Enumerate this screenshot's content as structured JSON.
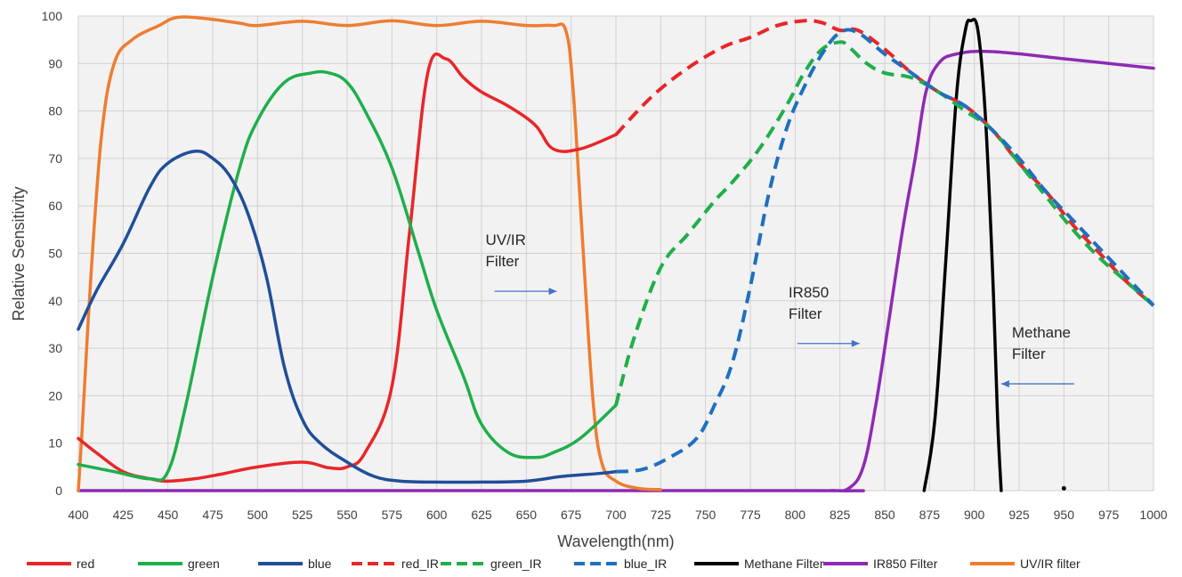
{
  "chart_data": {
    "type": "line",
    "title": "",
    "xlabel": "Wavelength(nm)",
    "ylabel": "Relative Sensitivity",
    "xlim": [
      400,
      1000
    ],
    "ylim": [
      0,
      100
    ],
    "x_ticks": [
      400,
      425,
      450,
      475,
      500,
      525,
      550,
      575,
      600,
      625,
      650,
      675,
      700,
      725,
      750,
      775,
      800,
      825,
      850,
      875,
      900,
      925,
      950,
      975,
      1000
    ],
    "y_ticks": [
      0,
      10,
      20,
      30,
      40,
      50,
      60,
      70,
      80,
      90,
      100
    ],
    "grid": true,
    "legend_position": "bottom",
    "series": [
      {
        "name": "red",
        "color": "#e8262a",
        "dash": "solid",
        "points": [
          [
            400,
            11
          ],
          [
            410,
            8
          ],
          [
            425,
            4
          ],
          [
            440,
            2.5
          ],
          [
            450,
            2
          ],
          [
            465,
            2.5
          ],
          [
            480,
            3.5
          ],
          [
            500,
            5
          ],
          [
            525,
            6
          ],
          [
            540,
            4.8
          ],
          [
            550,
            5
          ],
          [
            560,
            8
          ],
          [
            575,
            22
          ],
          [
            585,
            55
          ],
          [
            595,
            88
          ],
          [
            605,
            91
          ],
          [
            615,
            87
          ],
          [
            625,
            84
          ],
          [
            640,
            81
          ],
          [
            655,
            77
          ],
          [
            665,
            72
          ],
          [
            680,
            72
          ],
          [
            700,
            75
          ]
        ]
      },
      {
        "name": "green",
        "color": "#1fae4b",
        "dash": "solid",
        "points": [
          [
            400,
            5.5
          ],
          [
            420,
            4
          ],
          [
            440,
            2.5
          ],
          [
            450,
            4
          ],
          [
            460,
            18
          ],
          [
            475,
            45
          ],
          [
            490,
            68
          ],
          [
            500,
            78
          ],
          [
            515,
            86
          ],
          [
            530,
            88
          ],
          [
            540,
            88
          ],
          [
            550,
            86
          ],
          [
            560,
            80
          ],
          [
            575,
            68
          ],
          [
            590,
            50
          ],
          [
            600,
            38
          ],
          [
            615,
            24
          ],
          [
            625,
            14
          ],
          [
            640,
            8
          ],
          [
            655,
            7
          ],
          [
            665,
            8
          ],
          [
            680,
            11
          ],
          [
            700,
            18
          ]
        ]
      },
      {
        "name": "blue",
        "color": "#1f4e9a",
        "dash": "solid",
        "points": [
          [
            400,
            34
          ],
          [
            410,
            42
          ],
          [
            425,
            52
          ],
          [
            440,
            64
          ],
          [
            450,
            69
          ],
          [
            465,
            71.5
          ],
          [
            475,
            70
          ],
          [
            485,
            66
          ],
          [
            495,
            58
          ],
          [
            505,
            45
          ],
          [
            515,
            26
          ],
          [
            525,
            15
          ],
          [
            535,
            10
          ],
          [
            550,
            6
          ],
          [
            565,
            3
          ],
          [
            580,
            2
          ],
          [
            600,
            1.8
          ],
          [
            625,
            1.8
          ],
          [
            650,
            2
          ],
          [
            670,
            3
          ],
          [
            690,
            3.6
          ],
          [
            700,
            4
          ]
        ]
      },
      {
        "name": "red_IR",
        "color": "#e8262a",
        "dash": "dashed",
        "points": [
          [
            700,
            75
          ],
          [
            720,
            83
          ],
          [
            740,
            89
          ],
          [
            760,
            93.5
          ],
          [
            775,
            95.5
          ],
          [
            790,
            98
          ],
          [
            805,
            99
          ],
          [
            815,
            98.6
          ],
          [
            825,
            97
          ],
          [
            835,
            97
          ],
          [
            850,
            93
          ],
          [
            865,
            88
          ],
          [
            880,
            84
          ],
          [
            895,
            81
          ],
          [
            910,
            76
          ],
          [
            925,
            69
          ],
          [
            940,
            63
          ],
          [
            955,
            56
          ],
          [
            970,
            50
          ],
          [
            985,
            44
          ],
          [
            1000,
            39
          ]
        ]
      },
      {
        "name": "green_IR",
        "color": "#1fae4b",
        "dash": "dashed",
        "points": [
          [
            700,
            18
          ],
          [
            710,
            32
          ],
          [
            725,
            47
          ],
          [
            740,
            54
          ],
          [
            755,
            61
          ],
          [
            765,
            65
          ],
          [
            780,
            72
          ],
          [
            795,
            81
          ],
          [
            805,
            88
          ],
          [
            815,
            93
          ],
          [
            825,
            94.5
          ],
          [
            830,
            93.5
          ],
          [
            840,
            90
          ],
          [
            850,
            88
          ],
          [
            865,
            87
          ],
          [
            880,
            84
          ],
          [
            895,
            80
          ],
          [
            910,
            76
          ],
          [
            925,
            69
          ],
          [
            940,
            62
          ],
          [
            955,
            55
          ],
          [
            970,
            49
          ],
          [
            985,
            44
          ],
          [
            1000,
            39
          ]
        ]
      },
      {
        "name": "blue_IR",
        "color": "#1f6fc0",
        "dash": "dashed",
        "points": [
          [
            700,
            4
          ],
          [
            715,
            4.5
          ],
          [
            730,
            7
          ],
          [
            745,
            11
          ],
          [
            755,
            18
          ],
          [
            765,
            27
          ],
          [
            775,
            43
          ],
          [
            785,
            62
          ],
          [
            795,
            76
          ],
          [
            805,
            85
          ],
          [
            815,
            92
          ],
          [
            825,
            96.5
          ],
          [
            835,
            96.5
          ],
          [
            850,
            92
          ],
          [
            865,
            88
          ],
          [
            880,
            84
          ],
          [
            895,
            81
          ],
          [
            910,
            76
          ],
          [
            925,
            70
          ],
          [
            940,
            63
          ],
          [
            955,
            57
          ],
          [
            970,
            51
          ],
          [
            985,
            45
          ],
          [
            1000,
            39
          ]
        ]
      },
      {
        "name": "Methane Filter",
        "color": "#000000",
        "dash": "solid",
        "points": [
          [
            872,
            0
          ],
          [
            878,
            15
          ],
          [
            884,
            48
          ],
          [
            890,
            83
          ],
          [
            895,
            97
          ],
          [
            898,
            99
          ],
          [
            902,
            97
          ],
          [
            906,
            80
          ],
          [
            910,
            48
          ],
          [
            913,
            15
          ],
          [
            915,
            0
          ]
        ]
      },
      {
        "name": "IR850 Filter",
        "color": "#8e2ab4",
        "dash": "solid",
        "points": [
          [
            400,
            0
          ],
          [
            800,
            0
          ],
          [
            820,
            0
          ],
          [
            830,
            0.5
          ],
          [
            838,
            5
          ],
          [
            845,
            18
          ],
          [
            852,
            35
          ],
          [
            860,
            55
          ],
          [
            867,
            70
          ],
          [
            873,
            84
          ],
          [
            880,
            90
          ],
          [
            890,
            92
          ],
          [
            910,
            92.5
          ],
          [
            950,
            91
          ],
          [
            1000,
            89
          ]
        ]
      },
      {
        "name": "UV/IR filter",
        "color": "#ee7d2f",
        "dash": "solid",
        "points": [
          [
            400,
            0
          ],
          [
            402,
            12
          ],
          [
            407,
            45
          ],
          [
            413,
            75
          ],
          [
            420,
            90
          ],
          [
            430,
            95
          ],
          [
            445,
            98
          ],
          [
            455,
            99.7
          ],
          [
            470,
            99.5
          ],
          [
            490,
            98.5
          ],
          [
            500,
            98
          ],
          [
            525,
            98.9
          ],
          [
            550,
            98
          ],
          [
            575,
            99
          ],
          [
            600,
            98
          ],
          [
            625,
            98.9
          ],
          [
            650,
            98
          ],
          [
            665,
            98
          ],
          [
            672,
            97
          ],
          [
            676,
            85
          ],
          [
            681,
            55
          ],
          [
            687,
            20
          ],
          [
            692,
            6
          ],
          [
            700,
            2
          ],
          [
            712,
            0.5
          ],
          [
            725,
            0.2
          ]
        ]
      }
    ],
    "annotations": [
      {
        "id": "uvir",
        "lines": [
          "UV/IR",
          "Filter"
        ],
        "arrow": "right",
        "x": 667,
        "y": 42
      },
      {
        "id": "ir850",
        "lines": [
          "IR850",
          "Filter"
        ],
        "arrow": "right",
        "x": 836,
        "y": 31
      },
      {
        "id": "methane",
        "lines": [
          "Methane",
          "Filter"
        ],
        "arrow": "left",
        "x": 915,
        "y": 22.5
      }
    ],
    "extra_marks": [
      {
        "name": "dot",
        "x": 950,
        "y": 0.5
      }
    ]
  }
}
